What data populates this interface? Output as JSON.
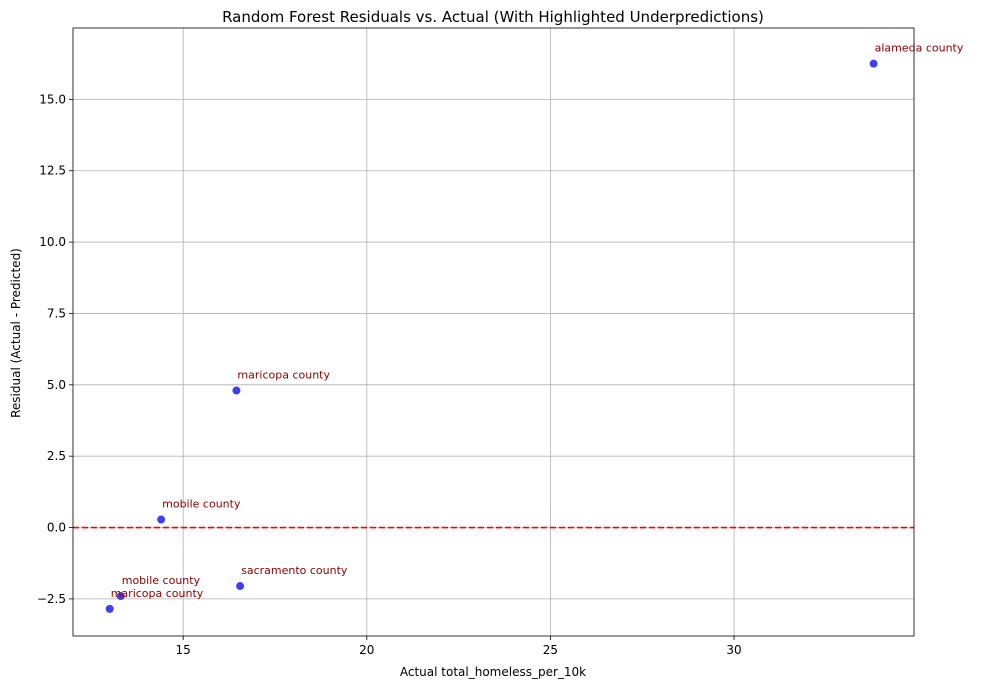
{
  "chart_data": {
    "type": "scatter",
    "title": "Random Forest Residuals vs. Actual (With Highlighted Underpredictions)",
    "xlabel": "Actual total_homeless_per_10k",
    "ylabel": "Residual (Actual - Predicted)",
    "xlim": [
      12.0,
      34.9
    ],
    "ylim": [
      -3.8,
      17.5
    ],
    "xticks": [
      15,
      20,
      25,
      30
    ],
    "xtick_labels": [
      "15",
      "20",
      "25",
      "30"
    ],
    "yticks": [
      -2.5,
      0.0,
      2.5,
      5.0,
      7.5,
      10.0,
      12.5,
      15.0
    ],
    "ytick_labels": [
      "−2.5",
      "0.0",
      "2.5",
      "5.0",
      "7.5",
      "10.0",
      "12.5",
      "15.0"
    ],
    "grid": true,
    "reference_line": {
      "y": 0,
      "color": "#ff0000",
      "style": "dashed"
    },
    "point_color": "#2b2bee",
    "annotation_color": "#8b0000",
    "points": [
      {
        "x": 13.0,
        "y": -2.85,
        "label": "maricopa county"
      },
      {
        "x": 13.3,
        "y": -2.4,
        "label": "mobile county"
      },
      {
        "x": 14.4,
        "y": 0.28,
        "label": "mobile county"
      },
      {
        "x": 16.45,
        "y": 4.8,
        "label": "maricopa county"
      },
      {
        "x": 16.55,
        "y": -2.05,
        "label": "sacramento county"
      },
      {
        "x": 33.8,
        "y": 16.25,
        "label": "alameda county"
      }
    ]
  }
}
